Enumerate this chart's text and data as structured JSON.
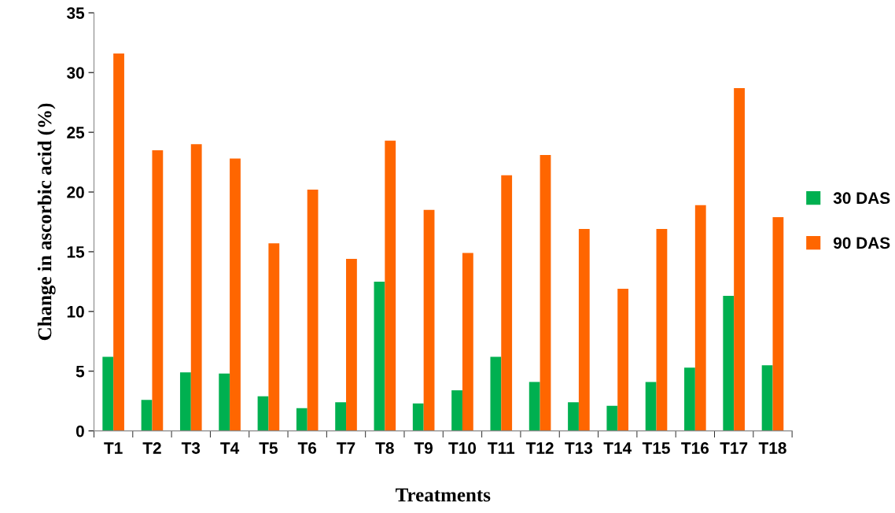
{
  "chart_data": {
    "type": "bar",
    "xlabel": "Treatments",
    "ylabel": "Change in ascorbic acid (%)",
    "categories": [
      "T1",
      "T2",
      "T3",
      "T4",
      "T5",
      "T6",
      "T7",
      "T8",
      "T9",
      "T10",
      "T11",
      "T12",
      "T13",
      "T14",
      "T15",
      "T16",
      "T17",
      "T18"
    ],
    "series": [
      {
        "name": "30 DAS",
        "color": "#00b050",
        "values": [
          6.2,
          2.6,
          4.9,
          4.8,
          2.9,
          1.9,
          2.4,
          12.5,
          2.3,
          3.4,
          6.2,
          4.1,
          2.4,
          2.1,
          4.1,
          5.3,
          11.3,
          5.5
        ]
      },
      {
        "name": "90 DAS",
        "color": "#ff6600",
        "values": [
          31.6,
          23.5,
          24.0,
          22.8,
          15.7,
          20.2,
          14.4,
          24.3,
          18.5,
          14.9,
          21.4,
          23.1,
          16.9,
          11.9,
          16.9,
          18.9,
          28.7,
          17.9
        ]
      }
    ],
    "ylim": [
      0,
      35
    ],
    "yticks": [
      0,
      5,
      10,
      15,
      20,
      25,
      30,
      35
    ],
    "grid": false,
    "legend": "right"
  }
}
